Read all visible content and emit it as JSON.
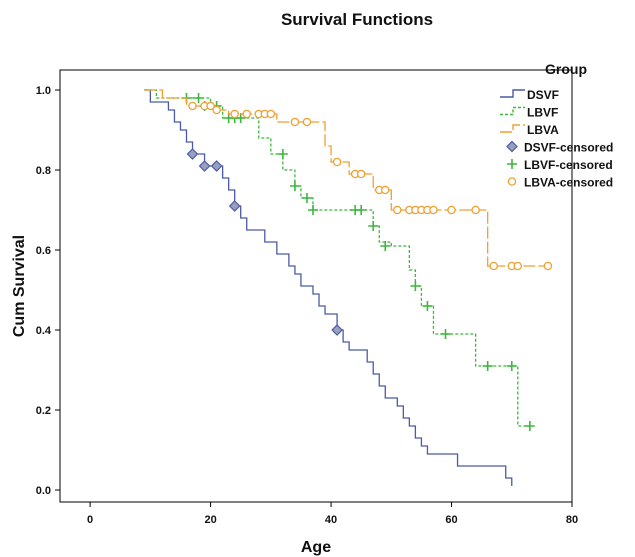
{
  "chart_data": {
    "type": "line",
    "title": "Survival Functions",
    "xlabel": "Age",
    "ylabel": "Cum Survival",
    "xlim": [
      -5,
      80
    ],
    "ylim": [
      -0.03,
      1.05
    ],
    "xticks": [
      0,
      20,
      40,
      60,
      80
    ],
    "yticks": [
      0.0,
      0.2,
      0.4,
      0.6,
      0.8,
      1.0
    ],
    "legend": {
      "title": "Group",
      "placement": "top-right",
      "entries": [
        "DSVF",
        "LBVF",
        "LBVA",
        "DSVF-censored",
        "LBVF-censored",
        "LBVA-censored"
      ]
    },
    "series": [
      {
        "name": "DSVF",
        "color": "#4a5aa8",
        "style": "solid",
        "censored_marker": "diamond",
        "steps": [
          [
            9,
            1.0
          ],
          [
            10,
            0.97
          ],
          [
            13,
            0.95
          ],
          [
            14,
            0.92
          ],
          [
            15,
            0.9
          ],
          [
            16,
            0.87
          ],
          [
            17,
            0.84
          ],
          [
            19,
            0.81
          ],
          [
            22,
            0.78
          ],
          [
            23,
            0.75
          ],
          [
            24,
            0.71
          ],
          [
            25,
            0.68
          ],
          [
            26,
            0.65
          ],
          [
            29,
            0.62
          ],
          [
            31,
            0.59
          ],
          [
            33,
            0.56
          ],
          [
            34,
            0.54
          ],
          [
            35,
            0.51
          ],
          [
            37,
            0.49
          ],
          [
            38,
            0.46
          ],
          [
            39,
            0.44
          ],
          [
            41,
            0.4
          ],
          [
            42,
            0.37
          ],
          [
            43,
            0.35
          ],
          [
            46,
            0.32
          ],
          [
            47,
            0.29
          ],
          [
            48,
            0.26
          ],
          [
            49,
            0.23
          ],
          [
            51,
            0.21
          ],
          [
            52,
            0.18
          ],
          [
            53,
            0.16
          ],
          [
            54,
            0.13
          ],
          [
            55,
            0.11
          ],
          [
            56,
            0.09
          ],
          [
            61,
            0.06
          ],
          [
            69,
            0.03
          ],
          [
            70,
            0.01
          ]
        ],
        "end": 70,
        "censored": [
          [
            17,
            0.84
          ],
          [
            19,
            0.81
          ],
          [
            21,
            0.81
          ],
          [
            24,
            0.71
          ],
          [
            41,
            0.4
          ]
        ]
      },
      {
        "name": "LBVF",
        "color": "#3cb83c",
        "style": "dashed",
        "censored_marker": "plus",
        "steps": [
          [
            9,
            1.0
          ],
          [
            11,
            0.98
          ],
          [
            20,
            0.96
          ],
          [
            22,
            0.93
          ],
          [
            28,
            0.88
          ],
          [
            30,
            0.84
          ],
          [
            32,
            0.8
          ],
          [
            34,
            0.76
          ],
          [
            35,
            0.73
          ],
          [
            37,
            0.7
          ],
          [
            47,
            0.66
          ],
          [
            48,
            0.62
          ],
          [
            50,
            0.61
          ],
          [
            53,
            0.55
          ],
          [
            54,
            0.51
          ],
          [
            55,
            0.46
          ],
          [
            57,
            0.39
          ],
          [
            64,
            0.31
          ],
          [
            71,
            0.16
          ]
        ],
        "end": 73,
        "censored": [
          [
            16,
            0.98
          ],
          [
            18,
            0.98
          ],
          [
            19,
            0.96
          ],
          [
            21,
            0.96
          ],
          [
            23,
            0.93
          ],
          [
            24,
            0.93
          ],
          [
            25,
            0.93
          ],
          [
            32,
            0.84
          ],
          [
            34,
            0.76
          ],
          [
            36,
            0.73
          ],
          [
            37,
            0.7
          ],
          [
            44,
            0.7
          ],
          [
            45,
            0.7
          ],
          [
            47,
            0.66
          ],
          [
            49,
            0.61
          ],
          [
            54,
            0.51
          ],
          [
            56,
            0.46
          ],
          [
            59,
            0.39
          ],
          [
            66,
            0.31
          ],
          [
            70,
            0.31
          ],
          [
            73,
            0.16
          ]
        ]
      },
      {
        "name": "LBVA",
        "color": "#f0a030",
        "style": "longdash",
        "censored_marker": "circle",
        "steps": [
          [
            9,
            1.0
          ],
          [
            12,
            0.98
          ],
          [
            16,
            0.96
          ],
          [
            21,
            0.95
          ],
          [
            23,
            0.94
          ],
          [
            27,
            0.94
          ],
          [
            31,
            0.92
          ],
          [
            39,
            0.86
          ],
          [
            40,
            0.82
          ],
          [
            43,
            0.79
          ],
          [
            47,
            0.75
          ],
          [
            50,
            0.7
          ],
          [
            66,
            0.56
          ]
        ],
        "end": 76,
        "censored": [
          [
            17,
            0.96
          ],
          [
            19,
            0.96
          ],
          [
            20,
            0.96
          ],
          [
            21,
            0.95
          ],
          [
            24,
            0.94
          ],
          [
            26,
            0.94
          ],
          [
            28,
            0.94
          ],
          [
            29,
            0.94
          ],
          [
            30,
            0.94
          ],
          [
            34,
            0.92
          ],
          [
            36,
            0.92
          ],
          [
            41,
            0.82
          ],
          [
            44,
            0.79
          ],
          [
            45,
            0.79
          ],
          [
            48,
            0.75
          ],
          [
            49,
            0.75
          ],
          [
            51,
            0.7
          ],
          [
            53,
            0.7
          ],
          [
            54,
            0.7
          ],
          [
            55,
            0.7
          ],
          [
            56,
            0.7
          ],
          [
            57,
            0.7
          ],
          [
            60,
            0.7
          ],
          [
            64,
            0.7
          ],
          [
            67,
            0.56
          ],
          [
            70,
            0.56
          ],
          [
            71,
            0.56
          ],
          [
            76,
            0.56
          ]
        ]
      }
    ]
  }
}
